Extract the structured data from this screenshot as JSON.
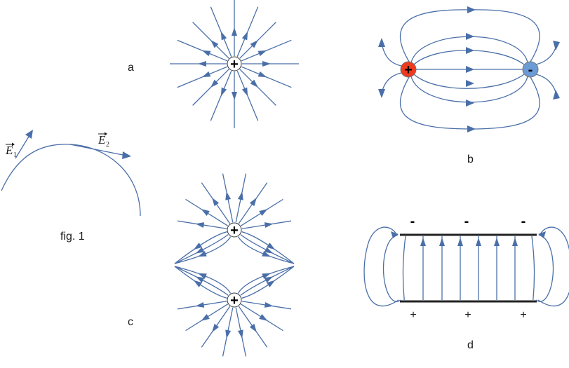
{
  "fig1": {
    "caption": "fig. 1",
    "e1_main": "E",
    "e1_sub": "1",
    "e2_main": "E",
    "e2_sub": "2"
  },
  "panel_a": {
    "label": "a",
    "charge": "+"
  },
  "panel_b": {
    "label": "b",
    "pos_charge": "+",
    "neg_charge": "-",
    "pos_color": "#ee3a1e",
    "neg_color": "#6b9bd6"
  },
  "panel_c": {
    "label": "c",
    "top_charge": "+",
    "bottom_charge": "+"
  },
  "panel_d": {
    "label": "d",
    "top_signs": [
      "-",
      "-",
      "-"
    ],
    "bottom_signs": [
      "+",
      "+",
      "+"
    ]
  },
  "colors": {
    "field_line": "#4a6fa8",
    "plate": "#222222"
  }
}
